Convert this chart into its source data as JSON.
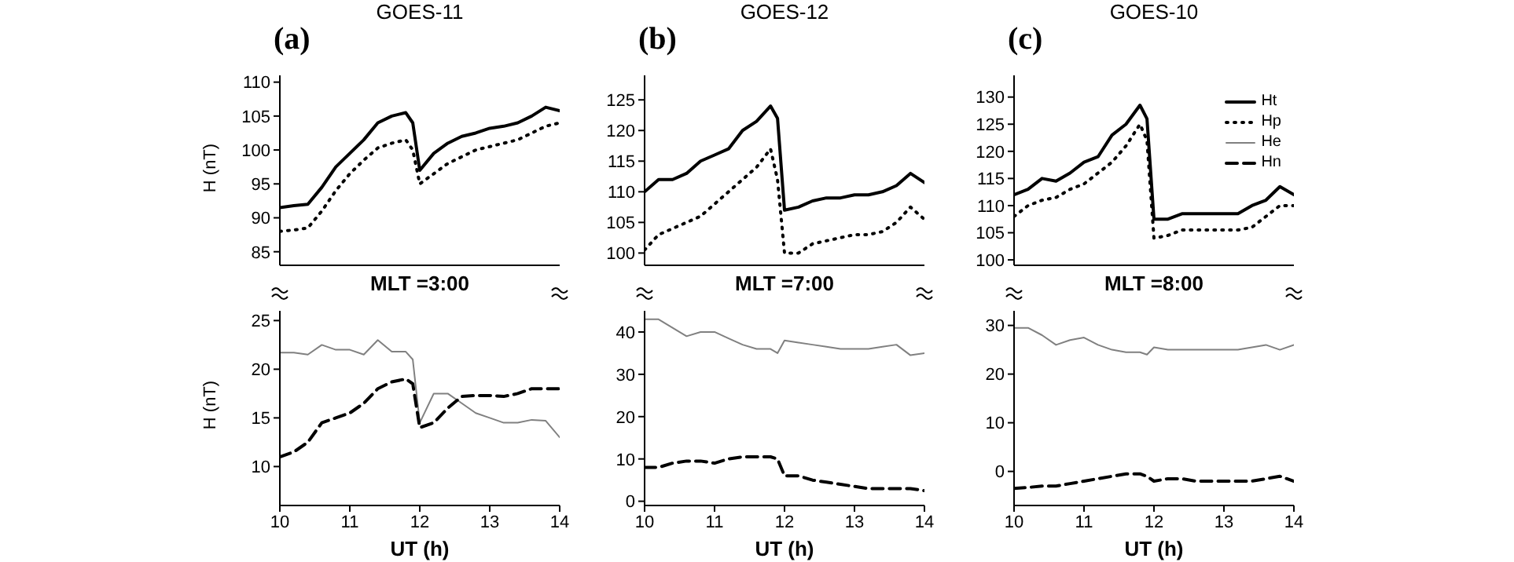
{
  "chart_data": [
    {
      "type": "line",
      "title": "GOES-11",
      "annotations": [
        "(a)"
      ],
      "ylabel": "H (nT)",
      "x": [
        10,
        10.2,
        10.4,
        10.6,
        10.8,
        11,
        11.2,
        11.4,
        11.6,
        11.8,
        11.9,
        12,
        12.2,
        12.4,
        12.6,
        12.8,
        13,
        13.2,
        13.4,
        13.6,
        13.8,
        14
      ],
      "xlim": [
        10,
        14
      ],
      "xticks": [
        10,
        11,
        12,
        13,
        14
      ],
      "ylim": [
        83,
        111
      ],
      "yticks": [
        85,
        90,
        95,
        100,
        105,
        110
      ],
      "tick_labels": "y",
      "series": [
        {
          "color": "#000000",
          "line_style": "solid",
          "values": [
            91.5,
            91.8,
            92,
            94.5,
            97.5,
            99.5,
            101.5,
            104,
            105,
            105.5,
            104,
            97,
            99.5,
            101,
            102,
            102.5,
            103.2,
            103.5,
            104,
            105,
            106.3,
            105.8
          ]
        },
        {
          "color": "#000000",
          "line_style": "dotted",
          "values": [
            88,
            88.2,
            88.5,
            91,
            94,
            96.5,
            98.5,
            100.3,
            101,
            101.5,
            100,
            95,
            96.5,
            98,
            99,
            100,
            100.5,
            101,
            101.5,
            102.5,
            103.5,
            104
          ]
        }
      ]
    },
    {
      "type": "line",
      "title": "GOES-12",
      "annotations": [
        "(b)"
      ],
      "x": [
        10,
        10.2,
        10.4,
        10.6,
        10.8,
        11,
        11.2,
        11.4,
        11.6,
        11.8,
        11.9,
        12,
        12.2,
        12.4,
        12.6,
        12.8,
        13,
        13.2,
        13.4,
        13.6,
        13.8,
        14
      ],
      "xlim": [
        10,
        14
      ],
      "xticks": [
        10,
        11,
        12,
        13,
        14
      ],
      "ylim": [
        98,
        129
      ],
      "yticks": [
        100,
        105,
        110,
        115,
        120,
        125
      ],
      "tick_labels": "y",
      "series": [
        {
          "color": "#000000",
          "line_style": "solid",
          "values": [
            110,
            112,
            112,
            113,
            115,
            116,
            117,
            120,
            121.5,
            124,
            122,
            107,
            107.5,
            108.5,
            109,
            109,
            109.5,
            109.5,
            110,
            111,
            113,
            111.5
          ]
        },
        {
          "color": "#000000",
          "line_style": "dotted",
          "values": [
            100.5,
            103,
            104,
            105,
            106,
            108,
            110,
            112,
            114,
            117,
            112,
            100,
            100,
            101.5,
            102,
            102.5,
            103,
            103,
            103.5,
            105,
            107.5,
            105.5
          ]
        }
      ]
    },
    {
      "type": "line",
      "title": "GOES-10",
      "annotations": [
        "(c)"
      ],
      "x": [
        10,
        10.2,
        10.4,
        10.6,
        10.8,
        11,
        11.2,
        11.4,
        11.6,
        11.8,
        11.9,
        12,
        12.2,
        12.4,
        12.6,
        12.8,
        13,
        13.2,
        13.4,
        13.6,
        13.8,
        14
      ],
      "xlim": [
        10,
        14
      ],
      "xticks": [
        10,
        11,
        12,
        13,
        14
      ],
      "ylim": [
        99,
        134
      ],
      "yticks": [
        100,
        105,
        110,
        115,
        120,
        125,
        130
      ],
      "tick_labels": "y",
      "legend": "top right",
      "series": [
        {
          "name": "Ht",
          "color": "#000000",
          "line_style": "solid",
          "values": [
            112,
            113,
            115,
            114.5,
            116,
            118,
            119,
            123,
            125,
            128.5,
            126,
            107.5,
            107.5,
            108.5,
            108.5,
            108.5,
            108.5,
            108.5,
            110,
            111,
            113.5,
            112
          ]
        },
        {
          "name": "Hp",
          "color": "#000000",
          "line_style": "dotted",
          "values": [
            108,
            110,
            111,
            111.5,
            113,
            114,
            116,
            118,
            121,
            125,
            122,
            104,
            104.5,
            105.5,
            105.5,
            105.5,
            105.5,
            105.5,
            106,
            108,
            110,
            110
          ]
        }
      ]
    },
    {
      "type": "line",
      "annotations": [
        "MLT =3:00"
      ],
      "ylabel": "H (nT)",
      "xlabel": "UT (h)",
      "x": [
        10,
        10.2,
        10.4,
        10.6,
        10.8,
        11,
        11.2,
        11.4,
        11.6,
        11.8,
        11.9,
        12,
        12.2,
        12.4,
        12.6,
        12.8,
        13,
        13.2,
        13.4,
        13.6,
        13.8,
        14
      ],
      "xlim": [
        10,
        14
      ],
      "xticks": [
        10,
        11,
        12,
        13,
        14
      ],
      "ylim": [
        6,
        26
      ],
      "yticks": [
        10,
        15,
        20,
        25
      ],
      "series": [
        {
          "color": "#808080",
          "line_style": "solid",
          "values": [
            21.7,
            21.7,
            21.5,
            22.5,
            22,
            22,
            21.5,
            23,
            21.8,
            21.8,
            21,
            14.5,
            17.5,
            17.5,
            16.5,
            15.5,
            15,
            14.5,
            14.5,
            14.8,
            14.7,
            13
          ]
        },
        {
          "color": "#000000",
          "line_style": "dashed",
          "values": [
            11,
            11.5,
            12.5,
            14.5,
            15,
            15.5,
            16.5,
            18,
            18.7,
            19,
            18.5,
            14,
            14.5,
            16,
            17.2,
            17.3,
            17.3,
            17.2,
            17.5,
            18,
            18,
            18
          ]
        }
      ]
    },
    {
      "type": "line",
      "annotations": [
        "MLT =7:00"
      ],
      "xlabel": "UT (h)",
      "x": [
        10,
        10.2,
        10.4,
        10.6,
        10.8,
        11,
        11.2,
        11.4,
        11.6,
        11.8,
        11.9,
        12,
        12.2,
        12.4,
        12.6,
        12.8,
        13,
        13.2,
        13.4,
        13.6,
        13.8,
        14
      ],
      "xlim": [
        10,
        14
      ],
      "xticks": [
        10,
        11,
        12,
        13,
        14
      ],
      "ylim": [
        -1,
        45
      ],
      "yticks": [
        0,
        10,
        20,
        30,
        40
      ],
      "series": [
        {
          "color": "#808080",
          "line_style": "solid",
          "values": [
            43,
            43,
            41,
            39,
            40,
            40,
            38.5,
            37,
            36,
            36,
            35,
            38,
            37.5,
            37,
            36.5,
            36,
            36,
            36,
            36.5,
            37,
            34.5,
            35
          ]
        },
        {
          "color": "#000000",
          "line_style": "dashed",
          "values": [
            8,
            8,
            9,
            9.5,
            9.5,
            9,
            10,
            10.5,
            10.5,
            10.5,
            10,
            6,
            6,
            5,
            4.5,
            4,
            3.5,
            3,
            3,
            3,
            3,
            2.5
          ]
        }
      ]
    },
    {
      "type": "line",
      "annotations": [
        "MLT =8:00"
      ],
      "xlabel": "UT (h)",
      "x": [
        10,
        10.2,
        10.4,
        10.6,
        10.8,
        11,
        11.2,
        11.4,
        11.6,
        11.8,
        11.9,
        12,
        12.2,
        12.4,
        12.6,
        12.8,
        13,
        13.2,
        13.4,
        13.6,
        13.8,
        14
      ],
      "xlim": [
        10,
        14
      ],
      "xticks": [
        10,
        11,
        12,
        13,
        14
      ],
      "ylim": [
        -7,
        33
      ],
      "yticks": [
        0,
        10,
        20,
        30
      ],
      "series": [
        {
          "name": "He",
          "color": "#808080",
          "line_style": "solid",
          "values": [
            29.5,
            29.5,
            28,
            26,
            27,
            27.5,
            26,
            25,
            24.5,
            24.5,
            24,
            25.5,
            25,
            25,
            25,
            25,
            25,
            25,
            25.5,
            26,
            25,
            26
          ]
        },
        {
          "name": "Hn",
          "color": "#000000",
          "line_style": "dashed",
          "values": [
            -3.5,
            -3.3,
            -3,
            -3,
            -2.5,
            -2,
            -1.5,
            -1,
            -0.5,
            -0.5,
            -1,
            -2,
            -1.5,
            -1.5,
            -2,
            -2,
            -2,
            -2,
            -2,
            -1.5,
            -1,
            -2
          ]
        }
      ]
    }
  ]
}
